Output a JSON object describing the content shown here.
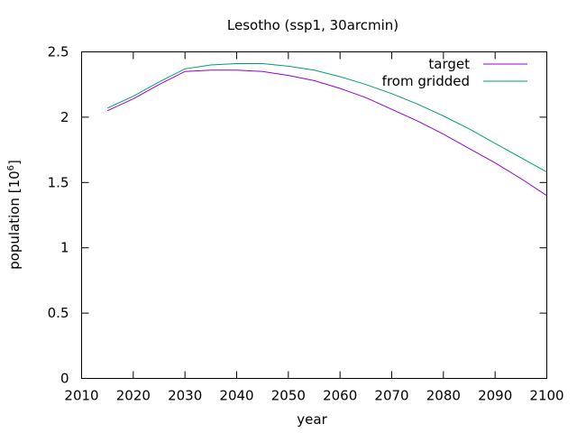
{
  "chart_data": {
    "type": "line",
    "title": "Lesotho (ssp1, 30arcmin)",
    "xlabel": "year",
    "ylabel_main": "population [10",
    "ylabel_sup": "6",
    "ylabel_close": "]",
    "xlim": [
      2010,
      2100
    ],
    "ylim": [
      0,
      2.5
    ],
    "xticks": [
      2010,
      2020,
      2030,
      2040,
      2050,
      2060,
      2070,
      2080,
      2090,
      2100
    ],
    "yticks": [
      0,
      0.5,
      1,
      1.5,
      2,
      2.5
    ],
    "grid": false,
    "legend_position": "top-right",
    "x": [
      2015,
      2020,
      2025,
      2030,
      2035,
      2040,
      2045,
      2050,
      2055,
      2060,
      2065,
      2070,
      2075,
      2080,
      2085,
      2090,
      2095,
      2100
    ],
    "series": [
      {
        "name": "target",
        "color": "#9400d3",
        "values": [
          2.05,
          2.14,
          2.25,
          2.35,
          2.36,
          2.36,
          2.35,
          2.32,
          2.28,
          2.22,
          2.15,
          2.06,
          1.97,
          1.87,
          1.76,
          1.65,
          1.53,
          1.4
        ]
      },
      {
        "name": "from gridded",
        "color": "#009e73",
        "values": [
          2.07,
          2.16,
          2.27,
          2.37,
          2.4,
          2.41,
          2.41,
          2.39,
          2.36,
          2.31,
          2.25,
          2.18,
          2.1,
          2.01,
          1.91,
          1.8,
          1.69,
          1.58
        ]
      }
    ]
  }
}
